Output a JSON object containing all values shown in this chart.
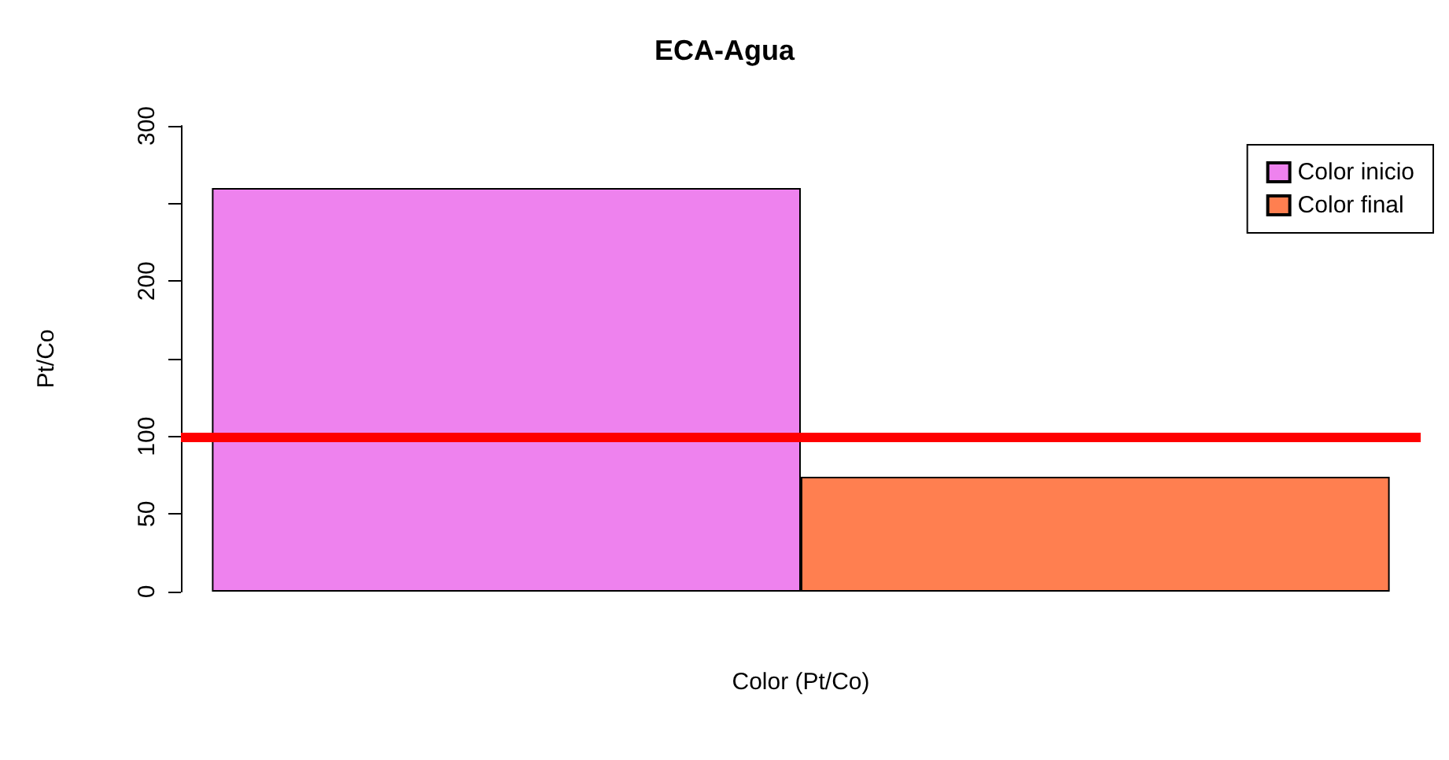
{
  "chart_data": {
    "type": "bar",
    "title": "ECA-Agua",
    "xlabel": "Color (Pt/Co)",
    "ylabel": "Pt/Co",
    "categories": [
      null
    ],
    "series": [
      {
        "name": "Color inicio",
        "color": "#ee82ee",
        "values": [
          260
        ]
      },
      {
        "name": "Color final",
        "color": "#ff7f50",
        "values": [
          74
        ]
      }
    ],
    "ylim": [
      0,
      300
    ],
    "yticks": [
      0,
      50,
      100,
      {
        "value": 150,
        "label": null
      },
      200,
      {
        "value": 250,
        "label": null
      },
      300
    ],
    "ref_lines": [
      {
        "axis": "y",
        "value": 100,
        "color": "#ff0000",
        "line_style": "solid"
      }
    ],
    "grid": false,
    "legend": "top right"
  }
}
